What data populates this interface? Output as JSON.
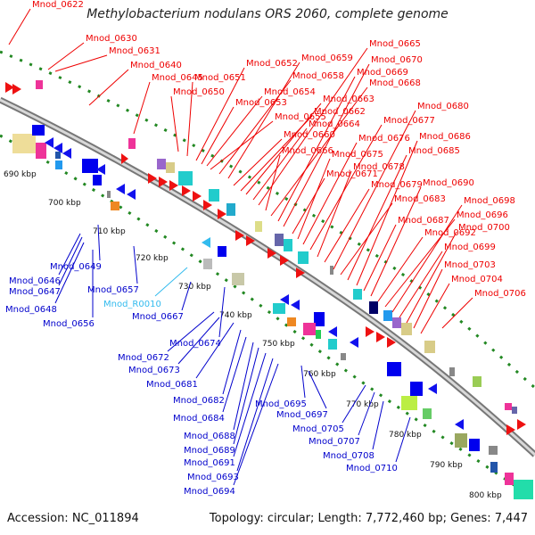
{
  "title": "Methylobacterium nodulans ORS 2060, complete genome",
  "footer": {
    "accession": "Accession: NC_011894",
    "topology": "Topology: circular; Length: 7,772,460 bp; Genes: 7,447"
  },
  "colors": {
    "forward_label": "#ee0000",
    "reverse_label": "#0000cc",
    "rna_label": "#33bbee",
    "backbone": "#999999",
    "tick_dots": "#228822"
  },
  "kbp_labels": [
    "690 kbp",
    "700 kbp",
    "710 kbp",
    "720 kbp",
    "730 kbp",
    "740 kbp",
    "750 kbp",
    "760 kbp",
    "770 kbp",
    "780 kbp",
    "790 kbp",
    "800 kbp"
  ],
  "red_labels": [
    "Mnod_0622",
    "Mnod_0630",
    "Mnod_0631",
    "Mnod_0640",
    "Mnod_0645",
    "Mnod_0650",
    "Mnod_0651",
    "Mnod_0652",
    "Mnod_0653",
    "Mnod_0654",
    "Mnod_0655",
    "Mnod_0658",
    "Mnod_0659",
    "Mnod_0660",
    "Mnod_0662",
    "Mnod_0663",
    "Mnod_0664",
    "Mnod_0665",
    "Mnod_0666",
    "Mnod_0668",
    "Mnod_0669",
    "Mnod_0670",
    "Mnod_0671",
    "Mnod_0675",
    "Mnod_0676",
    "Mnod_0677",
    "Mnod_0678",
    "Mnod_0679",
    "Mnod_0680",
    "Mnod_0683",
    "Mnod_0685",
    "Mnod_0686",
    "Mnod_0687",
    "Mnod_0690",
    "Mnod_0692",
    "Mnod_0696",
    "Mnod_0698",
    "Mnod_0699",
    "Mnod_0700",
    "Mnod_0703",
    "Mnod_0704",
    "Mnod_0706"
  ],
  "blue_labels": [
    "Mnod_0646",
    "Mnod_0647",
    "Mnod_0648",
    "Mnod_0649",
    "Mnod_0656",
    "Mnod_0657",
    "Mnod_0667",
    "Mnod_0672",
    "Mnod_0673",
    "Mnod_0674",
    "Mnod_0681",
    "Mnod_0682",
    "Mnod_0684",
    "Mnod_0688",
    "Mnod_0689",
    "Mnod_0691",
    "Mnod_0693",
    "Mnod_0694",
    "Mnod_0695",
    "Mnod_0697",
    "Mnod_0705",
    "Mnod_0707",
    "Mnod_0708",
    "Mnod_0710"
  ],
  "rna_labels": [
    "Mnod_R0010"
  ]
}
